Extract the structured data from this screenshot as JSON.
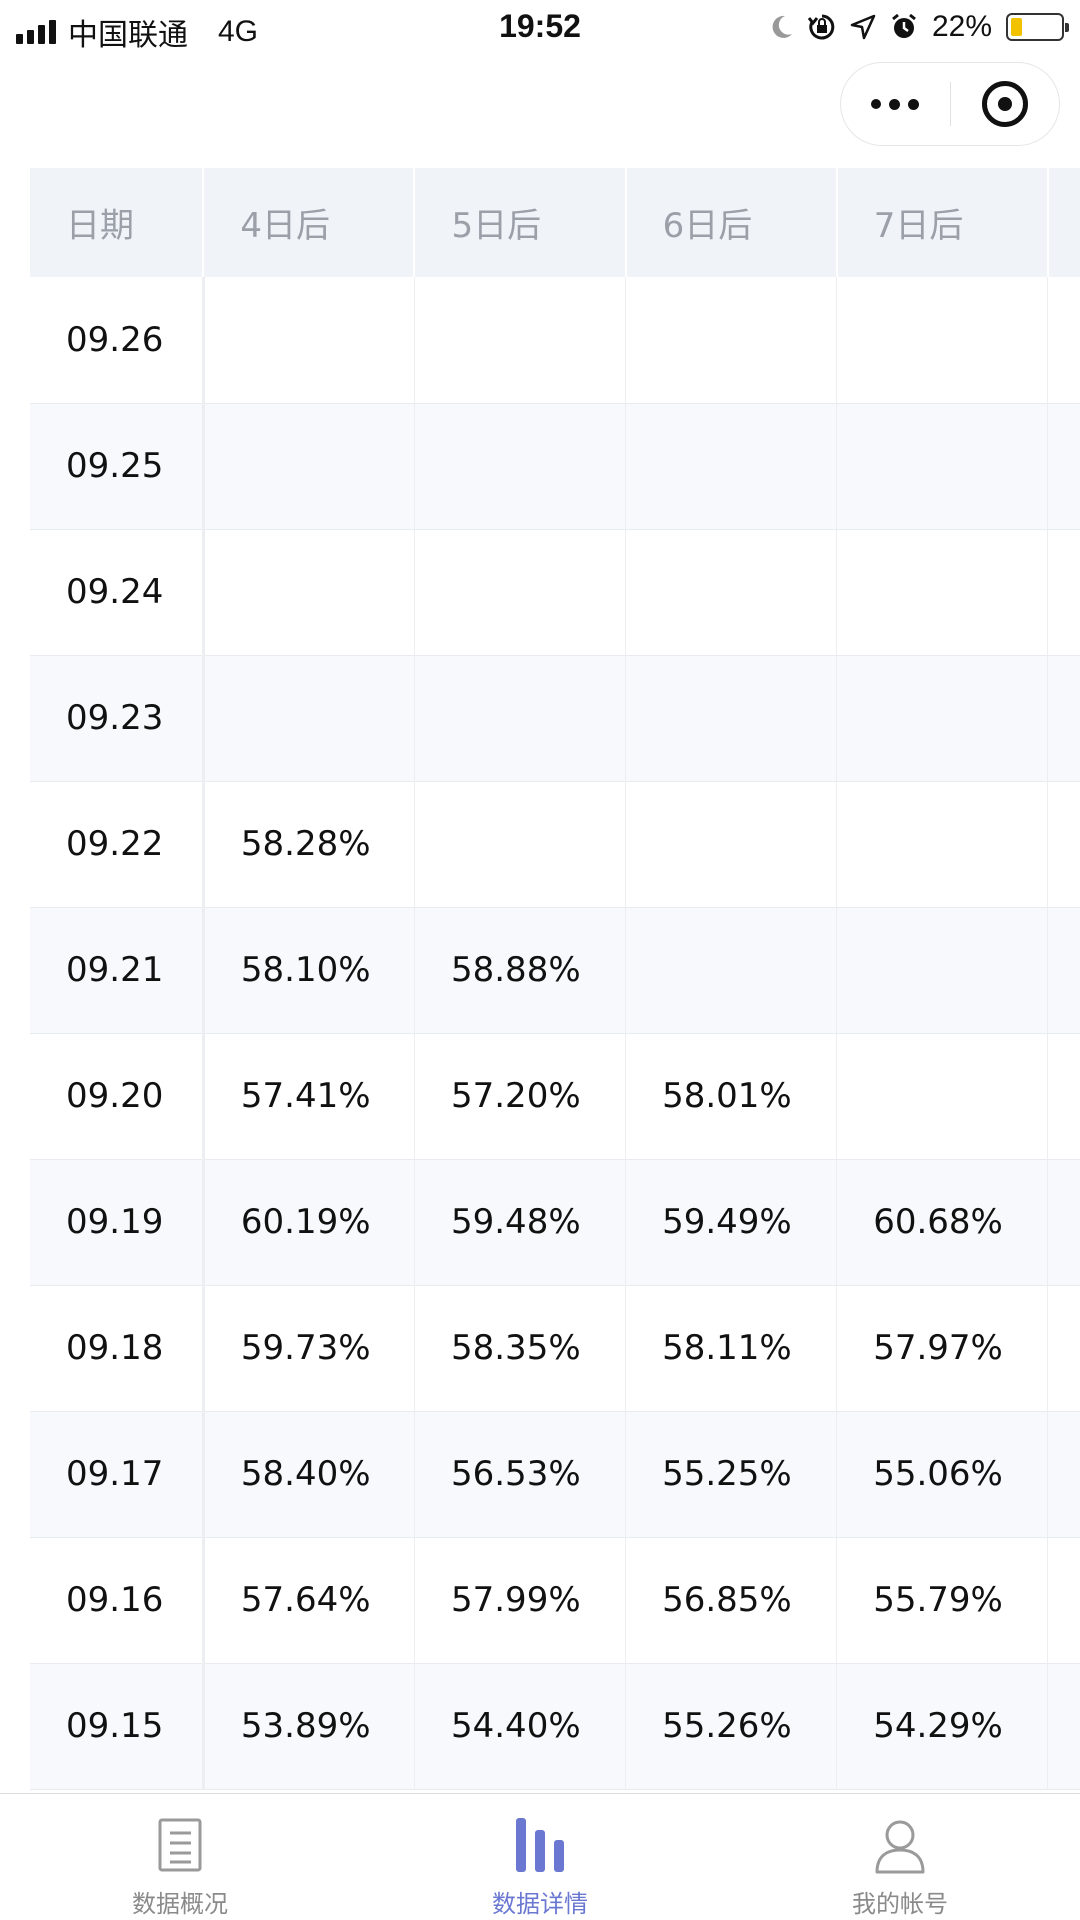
{
  "status_bar": {
    "carrier": "中国联通",
    "network": "4G",
    "time": "19:52",
    "battery_percent": "22%",
    "battery_level": 0.22,
    "icons": [
      "signal-icon",
      "moon-icon",
      "rotation-lock-icon",
      "location-icon",
      "alarm-icon",
      "battery-icon"
    ]
  },
  "capsule": {
    "icons": [
      "more-dots-icon",
      "close-target-icon"
    ]
  },
  "table": {
    "headers": [
      "日期",
      "4日后",
      "5日后",
      "6日后",
      "7日后"
    ],
    "rows": [
      [
        "09.26",
        "",
        "",
        "",
        ""
      ],
      [
        "09.25",
        "",
        "",
        "",
        ""
      ],
      [
        "09.24",
        "",
        "",
        "",
        ""
      ],
      [
        "09.23",
        "",
        "",
        "",
        ""
      ],
      [
        "09.22",
        "58.28%",
        "",
        "",
        ""
      ],
      [
        "09.21",
        "58.10%",
        "58.88%",
        "",
        ""
      ],
      [
        "09.20",
        "57.41%",
        "57.20%",
        "58.01%",
        ""
      ],
      [
        "09.19",
        "60.19%",
        "59.48%",
        "59.49%",
        "60.68%"
      ],
      [
        "09.18",
        "59.73%",
        "58.35%",
        "58.11%",
        "57.97%"
      ],
      [
        "09.17",
        "58.40%",
        "56.53%",
        "55.25%",
        "55.06%"
      ],
      [
        "09.16",
        "57.64%",
        "57.99%",
        "56.85%",
        "55.79%"
      ],
      [
        "09.15",
        "53.89%",
        "54.40%",
        "55.26%",
        "54.29%"
      ]
    ]
  },
  "tabbar": {
    "active_color": "#6b78d2",
    "inactive_color": "#8a8a8a",
    "tabs": [
      {
        "label": "数据概况",
        "icon": "list-document-icon",
        "active": false
      },
      {
        "label": "数据详情",
        "icon": "bar-chart-icon",
        "active": true
      },
      {
        "label": "我的帐号",
        "icon": "user-icon",
        "active": false
      }
    ]
  }
}
